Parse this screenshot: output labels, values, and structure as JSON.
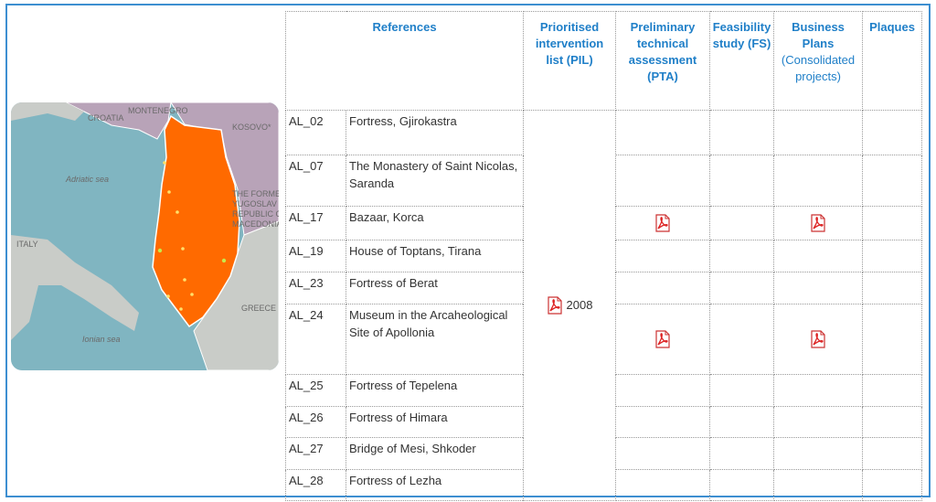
{
  "map": {
    "labels": [
      "CROATIA",
      "MONTENEGRO",
      "KOSOVO*",
      "Adriatic sea",
      "THE FORMER",
      "YUGOSLAV",
      "REPUBLIC OF",
      "MACEDONIA*",
      "ITALY",
      "GREECE",
      "Ionian sea"
    ]
  },
  "table": {
    "header": {
      "references": "References",
      "pil": "Prioritised intervention list (PIL)",
      "pta": "Preliminary technical assessment (PTA)",
      "fs": "Feasibility study (FS)",
      "business_plans": {
        "title": "Business Plans",
        "subtitle": "(Consolidated projects)"
      },
      "plaques": "Plaques"
    },
    "pil_year": "2008",
    "rows": [
      {
        "code": "AL_02",
        "name": "Fortress, Gjirokastra"
      },
      {
        "code": "AL_07",
        "name": "The Monastery of Saint Nicolas, Saranda"
      },
      {
        "code": "AL_17",
        "name": "Bazaar, Korca",
        "pta": true,
        "business_plan": true
      },
      {
        "code": "AL_19",
        "name": "House of Toptans, Tirana"
      },
      {
        "code": "AL_23",
        "name": "Fortress of Berat"
      },
      {
        "code": "AL_24",
        "name": "Museum in the Arcaheological Site of Apollonia",
        "pta": true,
        "business_plan": true
      },
      {
        "code": "AL_25",
        "name": "Fortress of Tepelena"
      },
      {
        "code": "AL_26",
        "name": "Fortress of Himara"
      },
      {
        "code": "AL_27",
        "name": "Bridge of Mesi, Shkoder"
      },
      {
        "code": "AL_28",
        "name": "Fortress of Lezha"
      }
    ]
  }
}
